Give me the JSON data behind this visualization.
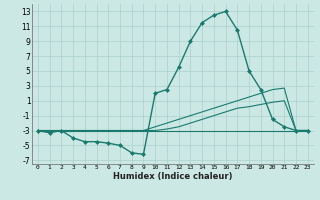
{
  "xlabel": "Humidex (Indice chaleur)",
  "background_color": "#cce8e4",
  "grid_color": "#aad0cc",
  "line_color": "#1a7a6e",
  "xlim": [
    -0.5,
    23.5
  ],
  "ylim": [
    -7.5,
    14
  ],
  "xticks": [
    0,
    1,
    2,
    3,
    4,
    5,
    6,
    7,
    8,
    9,
    10,
    11,
    12,
    13,
    14,
    15,
    16,
    17,
    18,
    19,
    20,
    21,
    22,
    23
  ],
  "yticks": [
    -7,
    -5,
    -3,
    -1,
    1,
    3,
    5,
    7,
    9,
    11,
    13
  ],
  "series": [
    {
      "x": [
        0,
        1,
        2,
        3,
        4,
        5,
        6,
        7,
        8,
        9,
        10,
        11,
        12,
        13,
        14,
        15,
        16,
        17,
        18,
        19,
        20,
        21,
        22,
        23
      ],
      "y": [
        -3,
        -3.3,
        -3,
        -4,
        -4.5,
        -4.5,
        -4.7,
        -5,
        -6,
        -6.2,
        2,
        2.5,
        5.5,
        9,
        11.5,
        12.5,
        13,
        10.5,
        5,
        2.5,
        -1.5,
        -2.5,
        -3,
        -3
      ],
      "marker": "D",
      "markersize": 2,
      "linewidth": 1.0
    },
    {
      "x": [
        0,
        1,
        2,
        3,
        4,
        5,
        6,
        7,
        8,
        9,
        10,
        11,
        12,
        13,
        14,
        15,
        16,
        17,
        18,
        19,
        20,
        21,
        22,
        23
      ],
      "y": [
        -3,
        -3,
        -3,
        -3,
        -3,
        -3,
        -3,
        -3,
        -3,
        -3,
        -2.5,
        -2,
        -1.5,
        -1,
        -0.5,
        0,
        0.5,
        1,
        1.5,
        2,
        2.5,
        2.7,
        -3,
        -3
      ],
      "marker": null,
      "linewidth": 0.8
    },
    {
      "x": [
        0,
        1,
        2,
        3,
        4,
        5,
        6,
        7,
        8,
        9,
        10,
        11,
        12,
        13,
        14,
        15,
        16,
        17,
        18,
        19,
        20,
        21,
        22,
        23
      ],
      "y": [
        -3,
        -3,
        -3,
        -3,
        -3,
        -3,
        -3,
        -3,
        -3,
        -3,
        -3,
        -2.8,
        -2.5,
        -2,
        -1.5,
        -1,
        -0.5,
        0,
        0.2,
        0.5,
        0.8,
        1.0,
        -3,
        -3
      ],
      "marker": null,
      "linewidth": 0.8
    },
    {
      "x": [
        0,
        1,
        2,
        3,
        4,
        5,
        6,
        7,
        8,
        9,
        10,
        11,
        12,
        13,
        14,
        15,
        16,
        17,
        18,
        19,
        20,
        21,
        22,
        23
      ],
      "y": [
        -3,
        -3,
        -3,
        -3,
        -3,
        -3,
        -3,
        -3,
        -3,
        -3,
        -3,
        -3,
        -3,
        -3,
        -3,
        -3,
        -3,
        -3,
        -3,
        -3,
        -3,
        -3,
        -3,
        -3
      ],
      "marker": null,
      "linewidth": 0.8
    }
  ]
}
